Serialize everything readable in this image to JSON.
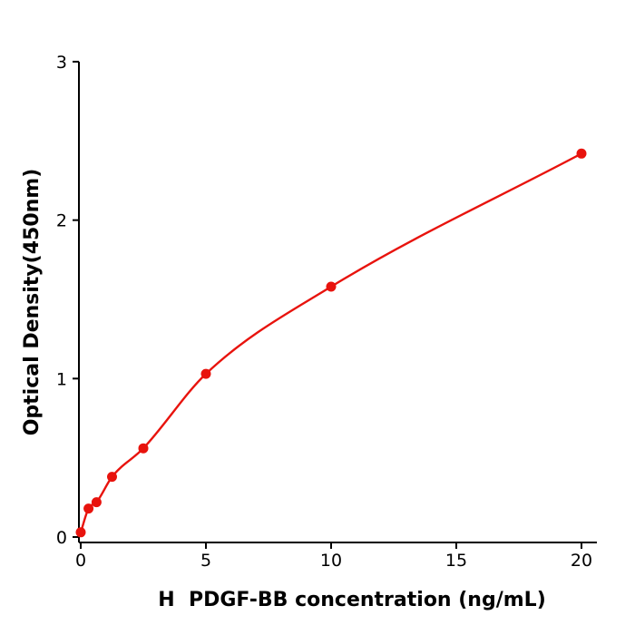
{
  "chart_data": {
    "type": "scatter",
    "title": "",
    "xlabel": "H  PDGF-BB concentration (ng/mL)",
    "ylabel": "Optical Density(450nm)",
    "x": [
      0,
      0.31,
      0.63,
      1.25,
      2.5,
      5,
      10,
      20
    ],
    "y": [
      0.03,
      0.18,
      0.22,
      0.38,
      0.56,
      1.03,
      1.58,
      2.42
    ],
    "xticks": [
      0,
      5,
      10,
      15,
      20
    ],
    "yticks": [
      0,
      1,
      2,
      3
    ],
    "xlim": [
      0,
      20.6
    ],
    "ylim": [
      0,
      3
    ],
    "grid": false,
    "legend": "none",
    "point_color": "#e8130d",
    "line_color": "#e8130d",
    "axis_color": "#000000",
    "background_color": "#ffffff",
    "fit_style": "smooth-curve-through-points"
  }
}
